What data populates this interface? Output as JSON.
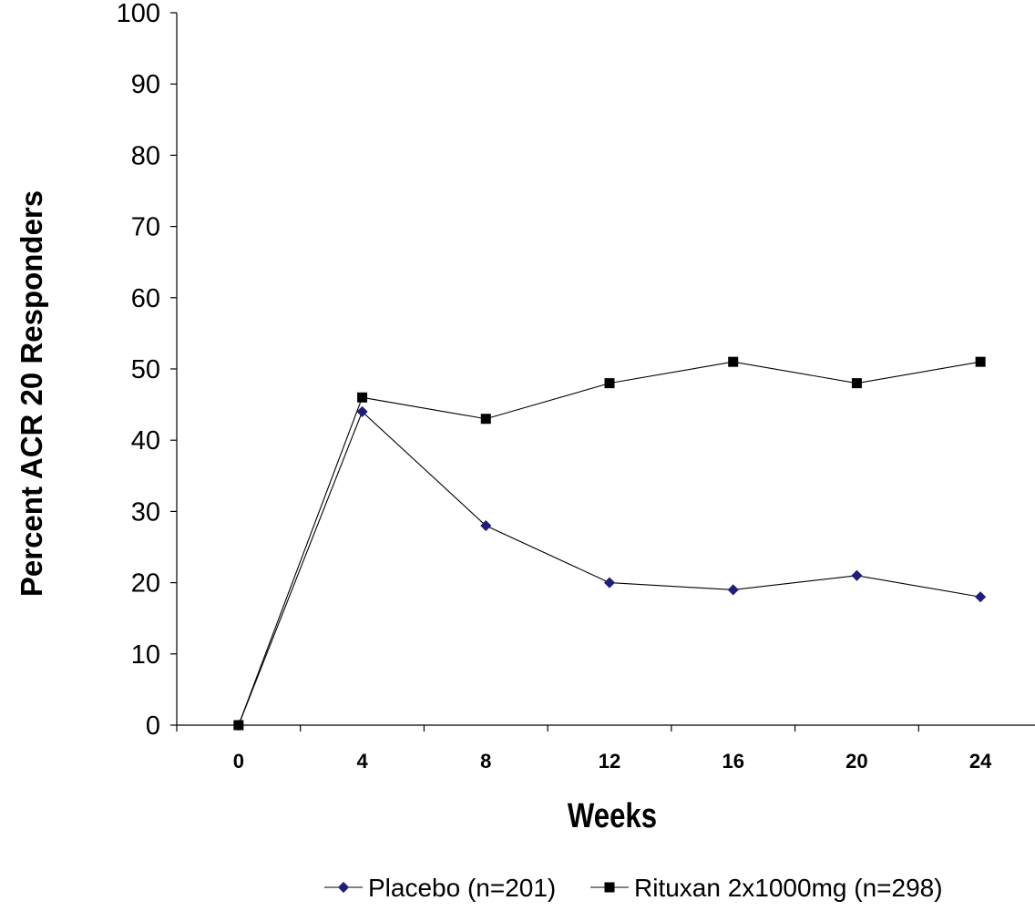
{
  "chart_data": {
    "type": "line",
    "xlabel": "Weeks",
    "ylabel": "Percent ACR 20 Responders",
    "x": [
      0,
      4,
      8,
      12,
      16,
      20,
      24
    ],
    "xlim": [
      0,
      24
    ],
    "ylim": [
      0,
      100
    ],
    "yticks": [
      0,
      10,
      20,
      30,
      40,
      50,
      60,
      70,
      80,
      90,
      100
    ],
    "grid": false,
    "legend_position": "bottom",
    "series": [
      {
        "name": "Placebo (n=201)",
        "marker": "diamond",
        "color": "#1f1f7a",
        "values": [
          0,
          44,
          28,
          20,
          19,
          21,
          18
        ]
      },
      {
        "name": "Rituxan 2x1000mg (n=298)",
        "marker": "square",
        "color": "#000000",
        "values": [
          0,
          46,
          43,
          48,
          51,
          48,
          51
        ]
      }
    ]
  }
}
